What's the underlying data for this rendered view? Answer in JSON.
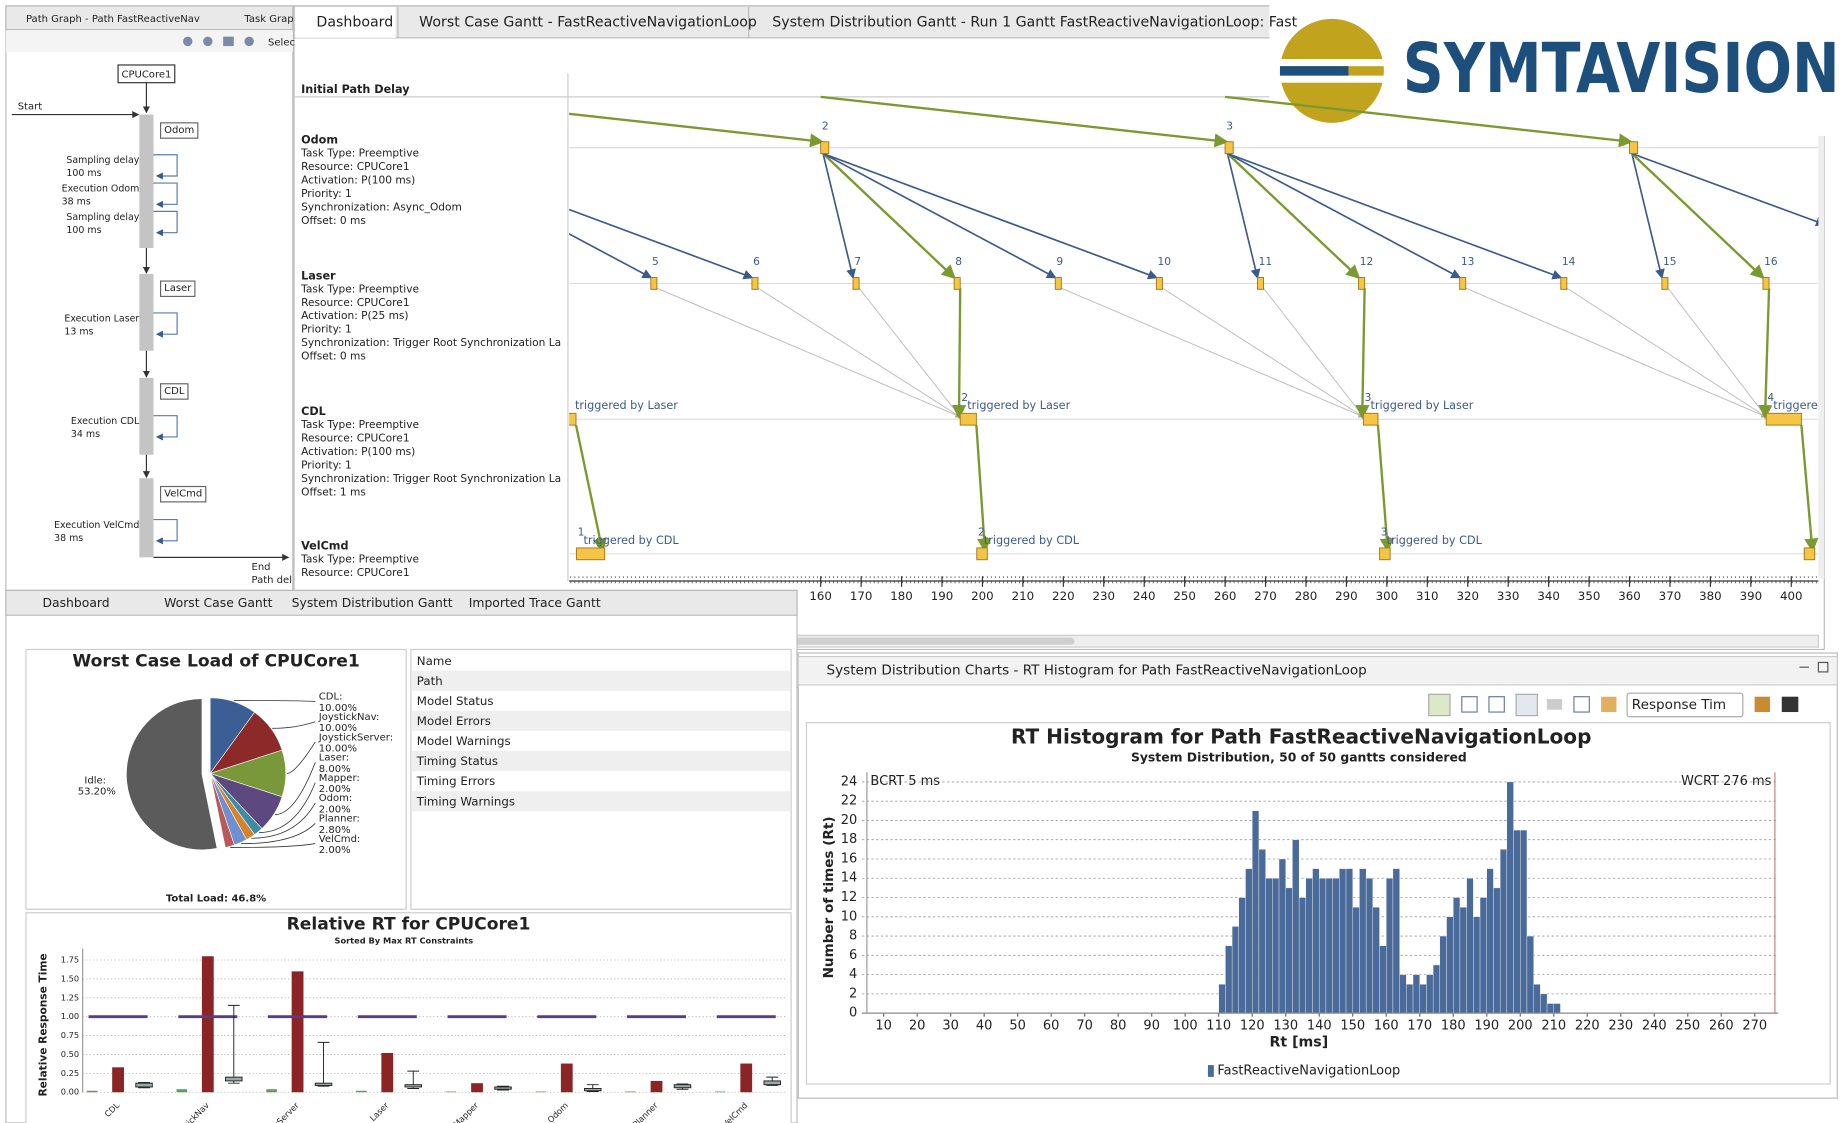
{
  "logo": "SYMTAVISION",
  "path_graph": {
    "tabs": [
      "Path Graph - Path FastReactiveNav",
      "Task Grap"
    ],
    "toolbar": "Selec",
    "resource": "CPUCore1",
    "start": "Start",
    "end": [
      "End",
      "Path del"
    ],
    "tasks": [
      {
        "name": "Odom",
        "steps": [
          [
            "Sampling delay",
            "100 ms"
          ],
          [
            "Execution Odom",
            "38 ms"
          ],
          [
            "Sampling delay",
            "100 ms"
          ]
        ]
      },
      {
        "name": "Laser",
        "steps": [
          [
            "Execution Laser",
            "13 ms"
          ]
        ]
      },
      {
        "name": "CDL",
        "steps": [
          [
            "Execution CDL",
            "34 ms"
          ]
        ]
      },
      {
        "name": "VelCmd",
        "steps": [
          [
            "Execution VelCmd",
            "38 ms"
          ]
        ]
      }
    ]
  },
  "gantt": {
    "tabs": [
      "Dashboard",
      "Worst Case Gantt - FastReactiveNavigationLoop",
      "System Distribution Gantt - Run 1 Gantt FastReactiveNavigationLoop: Fast"
    ],
    "header": "Initial Path Delay",
    "xlim": [
      97.8,
      406.7
    ],
    "xticks": [
      160,
      170,
      180,
      190,
      200,
      210,
      220,
      230,
      240,
      250,
      260,
      270,
      280,
      290,
      300,
      310,
      320,
      330,
      340,
      350,
      360,
      370,
      380,
      390,
      400
    ],
    "tasks": [
      {
        "name": "Odom",
        "details": [
          "Task Type: Preemptive",
          "Resource: CPUCore1",
          "Activation: P(100 ms)",
          "Priority: 1",
          "Synchronization: Async_Odom",
          "Offset: 0 ms"
        ],
        "instances": [
          {
            "label": "2",
            "start": 160,
            "end": 162
          },
          {
            "label": "3",
            "start": 260,
            "end": 262
          },
          {
            "start": 360,
            "end": 362
          }
        ]
      },
      {
        "name": "Laser",
        "details": [
          "Task Type: Preemptive",
          "Resource: CPUCore1",
          "Activation: P(25 ms)",
          "Priority: 1",
          "Synchronization: Trigger Root Synchronization La",
          "Offset: 0 ms"
        ],
        "instances": [
          {
            "label": "5",
            "start": 118,
            "end": 119.5
          },
          {
            "label": "6",
            "start": 143,
            "end": 144.5
          },
          {
            "label": "7",
            "start": 168,
            "end": 169.5
          },
          {
            "label": "8",
            "start": 193,
            "end": 194.5
          },
          {
            "label": "9",
            "start": 218,
            "end": 219.5
          },
          {
            "label": "10",
            "start": 243,
            "end": 244.5
          },
          {
            "label": "11",
            "start": 268,
            "end": 269.5
          },
          {
            "label": "12",
            "start": 293,
            "end": 294.5
          },
          {
            "label": "13",
            "start": 318,
            "end": 319.5
          },
          {
            "label": "14",
            "start": 343,
            "end": 344.5
          },
          {
            "label": "15",
            "start": 368,
            "end": 369.5
          },
          {
            "label": "16",
            "start": 393,
            "end": 394.5
          }
        ]
      },
      {
        "name": "CDL",
        "details": [
          "Task Type: Preemptive",
          "Resource: CPUCore1",
          "Activation: P(100 ms)",
          "Priority: 1",
          "Synchronization: Trigger Root Synchronization La",
          "Offset: 1 ms"
        ],
        "instances": [
          {
            "note": "triggered by Laser",
            "start": 97.5,
            "end": 99.5
          },
          {
            "label": "2",
            "note": "triggered by Laser",
            "start": 194.5,
            "end": 198.5
          },
          {
            "label": "3",
            "note": "triggered by Laser",
            "start": 294.2,
            "end": 297.8
          },
          {
            "label": "4",
            "note": "triggered by Laser",
            "start": 393.8,
            "end": 402.5
          }
        ]
      },
      {
        "name": "VelCmd",
        "details": [
          "Task Type: Preemptive",
          "Resource: CPUCore1"
        ],
        "instances": [
          {
            "label": "1",
            "note": "triggered by CDL",
            "start": 99.6,
            "end": 106.6
          },
          {
            "label": "2",
            "note": "triggered by CDL",
            "start": 198.6,
            "end": 201.2
          },
          {
            "label": "3",
            "note": "triggered by CDL",
            "start": 298.2,
            "end": 300.8
          },
          {
            "start": 403.2,
            "end": 405.8
          }
        ]
      }
    ]
  },
  "dashboard": {
    "tabs": [
      "Dashboard",
      "Worst Case Gantt",
      "System Distribution Gantt",
      "Imported Trace Gantt"
    ],
    "properties": [
      "Name",
      "Path",
      "Model Status",
      "Model Errors",
      "Model Warnings",
      "Timing Status",
      "Timing Errors",
      "Timing Warnings"
    ]
  },
  "histogram_panel": {
    "tab": "System Distribution Charts - RT Histogram for Path FastReactiveNavigationLoop",
    "dropdown": "Response Tim"
  },
  "chart_data": [
    {
      "type": "pie",
      "title": "Worst Case Load of CPUCore1",
      "footer": "Total Load: 46.8%",
      "values": [
        10,
        10,
        10,
        8,
        2,
        2,
        2.8,
        2,
        53.2
      ],
      "value_labels": [
        "CDL: 10.00%",
        "JoystickNav: 10.00%",
        "JoystickServer: 10.00%",
        "Laser: 8.00%",
        "Mapper: 2.00%",
        "Odom: 2.00%",
        "Planner: 2.80%",
        "VelCmd: 2.00%",
        "Idle: 53.20%"
      ],
      "colors": [
        "#3b5e95",
        "#8c2a2a",
        "#78983a",
        "#5d4880",
        "#3d8ca3",
        "#d4822c",
        "#6f8fcf",
        "#b85a5a",
        "#5b5b5b"
      ]
    },
    {
      "type": "bar",
      "title": "Relative RT for CPUCore1",
      "subtitle": "Sorted By Max RT Constraints",
      "ylabel": "Relative Response Time",
      "categories": [
        "CDL",
        "JoystickNav",
        "JoystickServer",
        "Laser",
        "Mapper",
        "Odom",
        "Planner",
        "VelCmd"
      ],
      "ylim": [
        0,
        1.9
      ],
      "yticks": [
        {
          "value": 0,
          "label": "0.00"
        },
        0.25,
        {
          "value": 0.5,
          "label": "0.50"
        },
        0.75,
        {
          "value": 1,
          "label": "1.00"
        },
        1.25,
        {
          "value": 1.5,
          "label": "1.50"
        },
        1.75
      ],
      "grid": true,
      "series": [
        {
          "color": "#5aa05a",
          "values": [
            0.02,
            0.04,
            0.04,
            0.02,
            0.01,
            0.01,
            0.01,
            0.01
          ]
        },
        {
          "color": "#8b2525",
          "values": [
            0.33,
            1.8,
            1.6,
            0.52,
            0.12,
            0.38,
            0.15,
            0.38
          ]
        },
        {
          "type": "marker",
          "color": "#5a3a8a",
          "values": [
            1,
            1,
            1,
            1,
            1,
            1,
            1,
            1
          ]
        }
      ],
      "boxes": [
        {
          "min": 0.06,
          "q1": 0.07,
          "q3": 0.12,
          "max": 0.13
        },
        {
          "min": 0.12,
          "q1": 0.15,
          "q3": 0.2,
          "max": 1.15
        },
        {
          "min": 0.08,
          "q1": 0.09,
          "q3": 0.12,
          "max": 0.66
        },
        {
          "min": 0.05,
          "q1": 0.07,
          "q3": 0.1,
          "max": 0.28
        },
        {
          "min": 0.03,
          "q1": 0.04,
          "q3": 0.07,
          "max": 0.08
        },
        {
          "min": 0.01,
          "q1": 0.02,
          "q3": 0.05,
          "max": 0.1
        },
        {
          "min": 0.04,
          "q1": 0.06,
          "q3": 0.1,
          "max": 0.11
        },
        {
          "min": 0.09,
          "q1": 0.1,
          "q3": 0.15,
          "max": 0.2
        }
      ]
    },
    {
      "type": "histogram",
      "title": "RT Histogram for Path FastReactiveNavigationLoop",
      "subtitle": "System Distribution, 50 of 50 gantts considered",
      "xlabel": "Rt [ms]",
      "ylabel": "Number of times (Rt)",
      "bins": [
        110,
        112,
        114,
        116,
        118,
        120,
        122,
        124,
        126,
        128,
        130,
        132,
        134,
        136,
        138,
        140,
        142,
        144,
        146,
        148,
        150,
        152,
        154,
        156,
        158,
        160,
        162,
        164,
        166,
        168,
        170,
        172,
        174,
        176,
        178,
        180,
        182,
        184,
        186,
        188,
        190,
        192,
        194,
        196,
        198,
        200,
        202,
        204,
        206,
        208,
        210,
        212
      ],
      "series": [
        {
          "name": "FastReactiveNavigationLoop",
          "color": "#4a6a9a",
          "values": [
            3,
            7,
            9,
            12,
            15,
            21,
            17,
            14,
            14,
            16,
            13,
            18,
            12,
            14,
            15,
            14,
            14,
            14,
            15,
            15,
            11,
            15,
            14,
            11,
            7,
            14,
            15,
            4,
            3,
            4,
            3,
            4,
            5,
            8,
            10,
            12,
            11,
            14,
            10,
            12,
            15,
            13,
            17,
            24,
            19,
            19,
            8,
            3,
            2,
            1,
            1
          ]
        }
      ],
      "xlim": [
        0,
        277
      ],
      "xticks": [
        10,
        20,
        30,
        40,
        50,
        60,
        70,
        80,
        90,
        100,
        110,
        120,
        130,
        140,
        150,
        160,
        170,
        180,
        190,
        200,
        210,
        220,
        230,
        240,
        250,
        260,
        270
      ],
      "ylim": [
        0,
        25
      ],
      "yticks": [
        0,
        2,
        4,
        6,
        8,
        10,
        12,
        14,
        16,
        18,
        20,
        22,
        24
      ],
      "grid": true,
      "annotations": [
        {
          "text": "BCRT 5 ms",
          "x": 5
        },
        {
          "text": "WCRT 276 ms",
          "x": 276
        }
      ]
    }
  ]
}
